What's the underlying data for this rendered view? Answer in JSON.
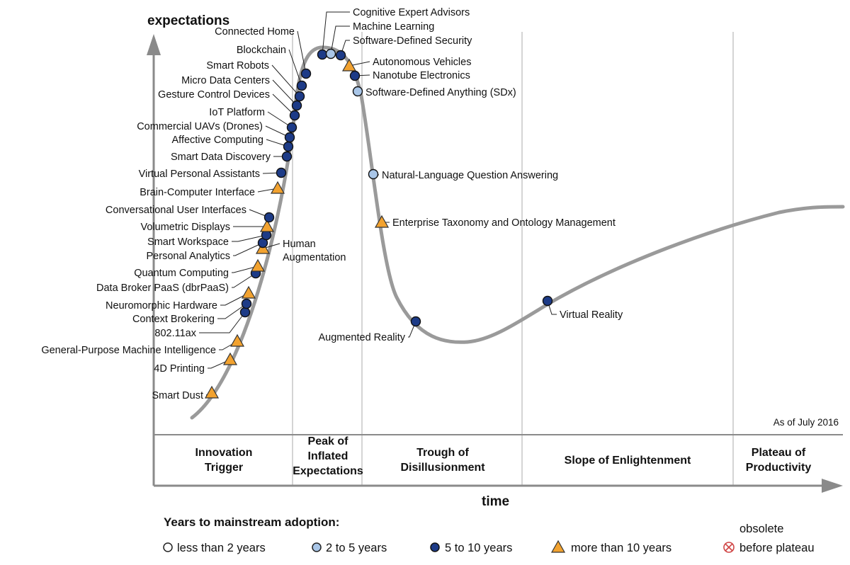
{
  "chart_data": {
    "type": "scatter",
    "y_axis_label": "expectations",
    "x_axis_label": "time",
    "as_of": "As of July 2016",
    "phases": [
      {
        "lines": [
          "Innovation",
          "Trigger"
        ]
      },
      {
        "lines": [
          "Peak of",
          "Inflated",
          "Expectations"
        ]
      },
      {
        "lines": [
          "Trough of",
          "Disillusionment"
        ]
      },
      {
        "lines": [
          "Slope of Enlightenment"
        ]
      },
      {
        "lines": [
          "Plateau of",
          "Productivity"
        ]
      }
    ],
    "legend": {
      "title": "Years to mainstream adoption:",
      "items": [
        {
          "key": "lt2",
          "label": "less than 2 years",
          "color": "#ffffff"
        },
        {
          "key": "2to5",
          "label": "2 to 5 years",
          "color": "#a9c6e8"
        },
        {
          "key": "5to10",
          "label": "5 to 10 years",
          "color": "#1d3b87"
        },
        {
          "key": "gt10",
          "label": "more than 10 years",
          "color": "#f2a22f"
        },
        {
          "key": "obsolete",
          "label_lines": [
            "obsolete",
            "before plateau"
          ],
          "color": "#e05050"
        }
      ]
    },
    "technologies": [
      {
        "name": "Smart Dust",
        "category": "gt10"
      },
      {
        "name": "4D Printing",
        "category": "gt10"
      },
      {
        "name": "General-Purpose Machine Intelligence",
        "category": "gt10"
      },
      {
        "name": "802.11ax",
        "category": "5to10"
      },
      {
        "name": "Context Brokering",
        "category": "5to10"
      },
      {
        "name": "Neuromorphic Hardware",
        "category": "gt10"
      },
      {
        "name": "Data Broker PaaS (dbrPaaS)",
        "category": "5to10"
      },
      {
        "name": "Quantum Computing",
        "category": "gt10"
      },
      {
        "name": "Human Augmentation",
        "category": "gt10"
      },
      {
        "name": "Personal Analytics",
        "category": "5to10"
      },
      {
        "name": "Smart Workspace",
        "category": "5to10"
      },
      {
        "name": "Volumetric Displays",
        "category": "gt10"
      },
      {
        "name": "Conversational User Interfaces",
        "category": "5to10"
      },
      {
        "name": "Brain-Computer Interface",
        "category": "gt10"
      },
      {
        "name": "Virtual Personal Assistants",
        "category": "5to10"
      },
      {
        "name": "Smart Data Discovery",
        "category": "5to10"
      },
      {
        "name": "Affective Computing",
        "category": "5to10"
      },
      {
        "name": "Commercial UAVs (Drones)",
        "category": "5to10"
      },
      {
        "name": "IoT Platform",
        "category": "5to10"
      },
      {
        "name": "Gesture Control Devices",
        "category": "5to10"
      },
      {
        "name": "Micro Data Centers",
        "category": "5to10"
      },
      {
        "name": "Smart Robots",
        "category": "5to10"
      },
      {
        "name": "Blockchain",
        "category": "5to10"
      },
      {
        "name": "Connected Home",
        "category": "5to10"
      },
      {
        "name": "Cognitive Expert Advisors",
        "category": "5to10"
      },
      {
        "name": "Machine Learning",
        "category": "2to5"
      },
      {
        "name": "Software-Defined Security",
        "category": "5to10"
      },
      {
        "name": "Autonomous Vehicles",
        "category": "gt10"
      },
      {
        "name": "Nanotube Electronics",
        "category": "5to10"
      },
      {
        "name": "Software-Defined Anything (SDx)",
        "category": "2to5"
      },
      {
        "name": "Natural-Language Question Answering",
        "category": "2to5"
      },
      {
        "name": "Enterprise Taxonomy and Ontology Management",
        "category": "gt10"
      },
      {
        "name": "Augmented Reality",
        "category": "5to10"
      },
      {
        "name": "Virtual Reality",
        "category": "5to10"
      }
    ]
  }
}
